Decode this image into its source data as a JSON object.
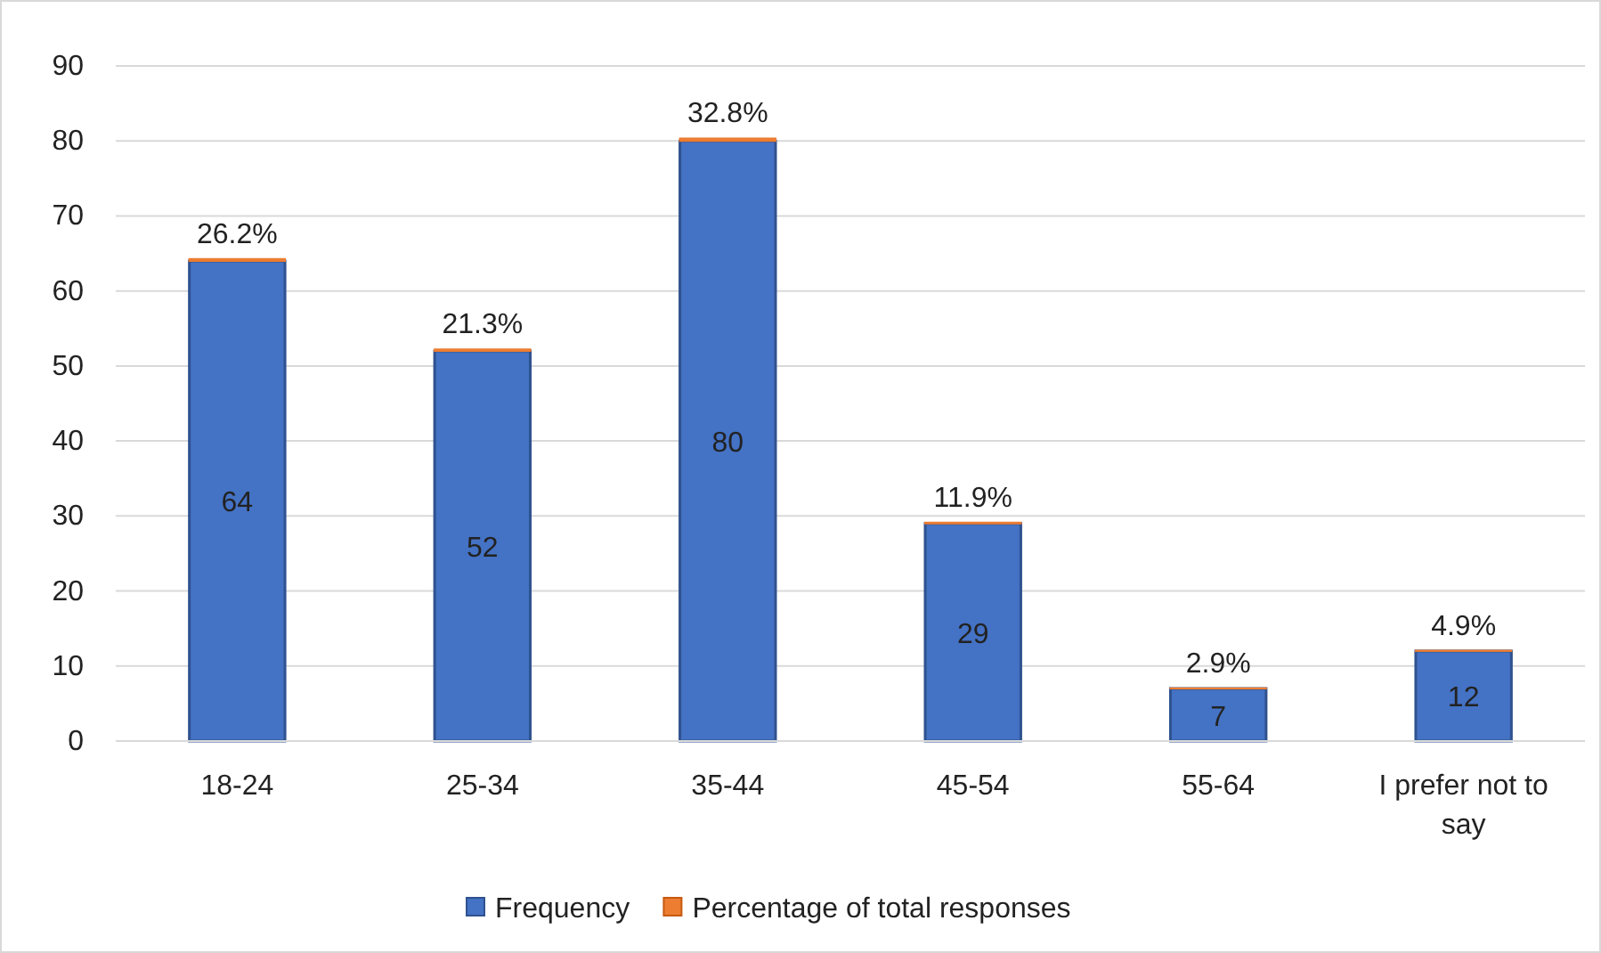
{
  "chart_data": {
    "type": "bar",
    "stacked": true,
    "categories": [
      "18-24",
      "25-34",
      "35-44",
      "45-54",
      "55-64",
      "I prefer not to say"
    ],
    "series": [
      {
        "name": "Frequency",
        "color": "#4472c4",
        "values": [
          64,
          52,
          80,
          29,
          7,
          12
        ],
        "value_labels": [
          "64",
          "52",
          "80",
          "29",
          "7",
          "12"
        ]
      },
      {
        "name": "Percentage of total responses",
        "color": "#ed7d31",
        "values": [
          0.262,
          0.213,
          0.328,
          0.119,
          0.029,
          0.049
        ],
        "value_labels": [
          "26.2%",
          "21.3%",
          "32.8%",
          "11.9%",
          "2.9%",
          "4.9%"
        ]
      }
    ],
    "ylim": [
      0,
      90
    ],
    "yticks": [
      0,
      10,
      20,
      30,
      40,
      50,
      60,
      70,
      80,
      90
    ],
    "grid": "y",
    "legend": "bottom"
  }
}
